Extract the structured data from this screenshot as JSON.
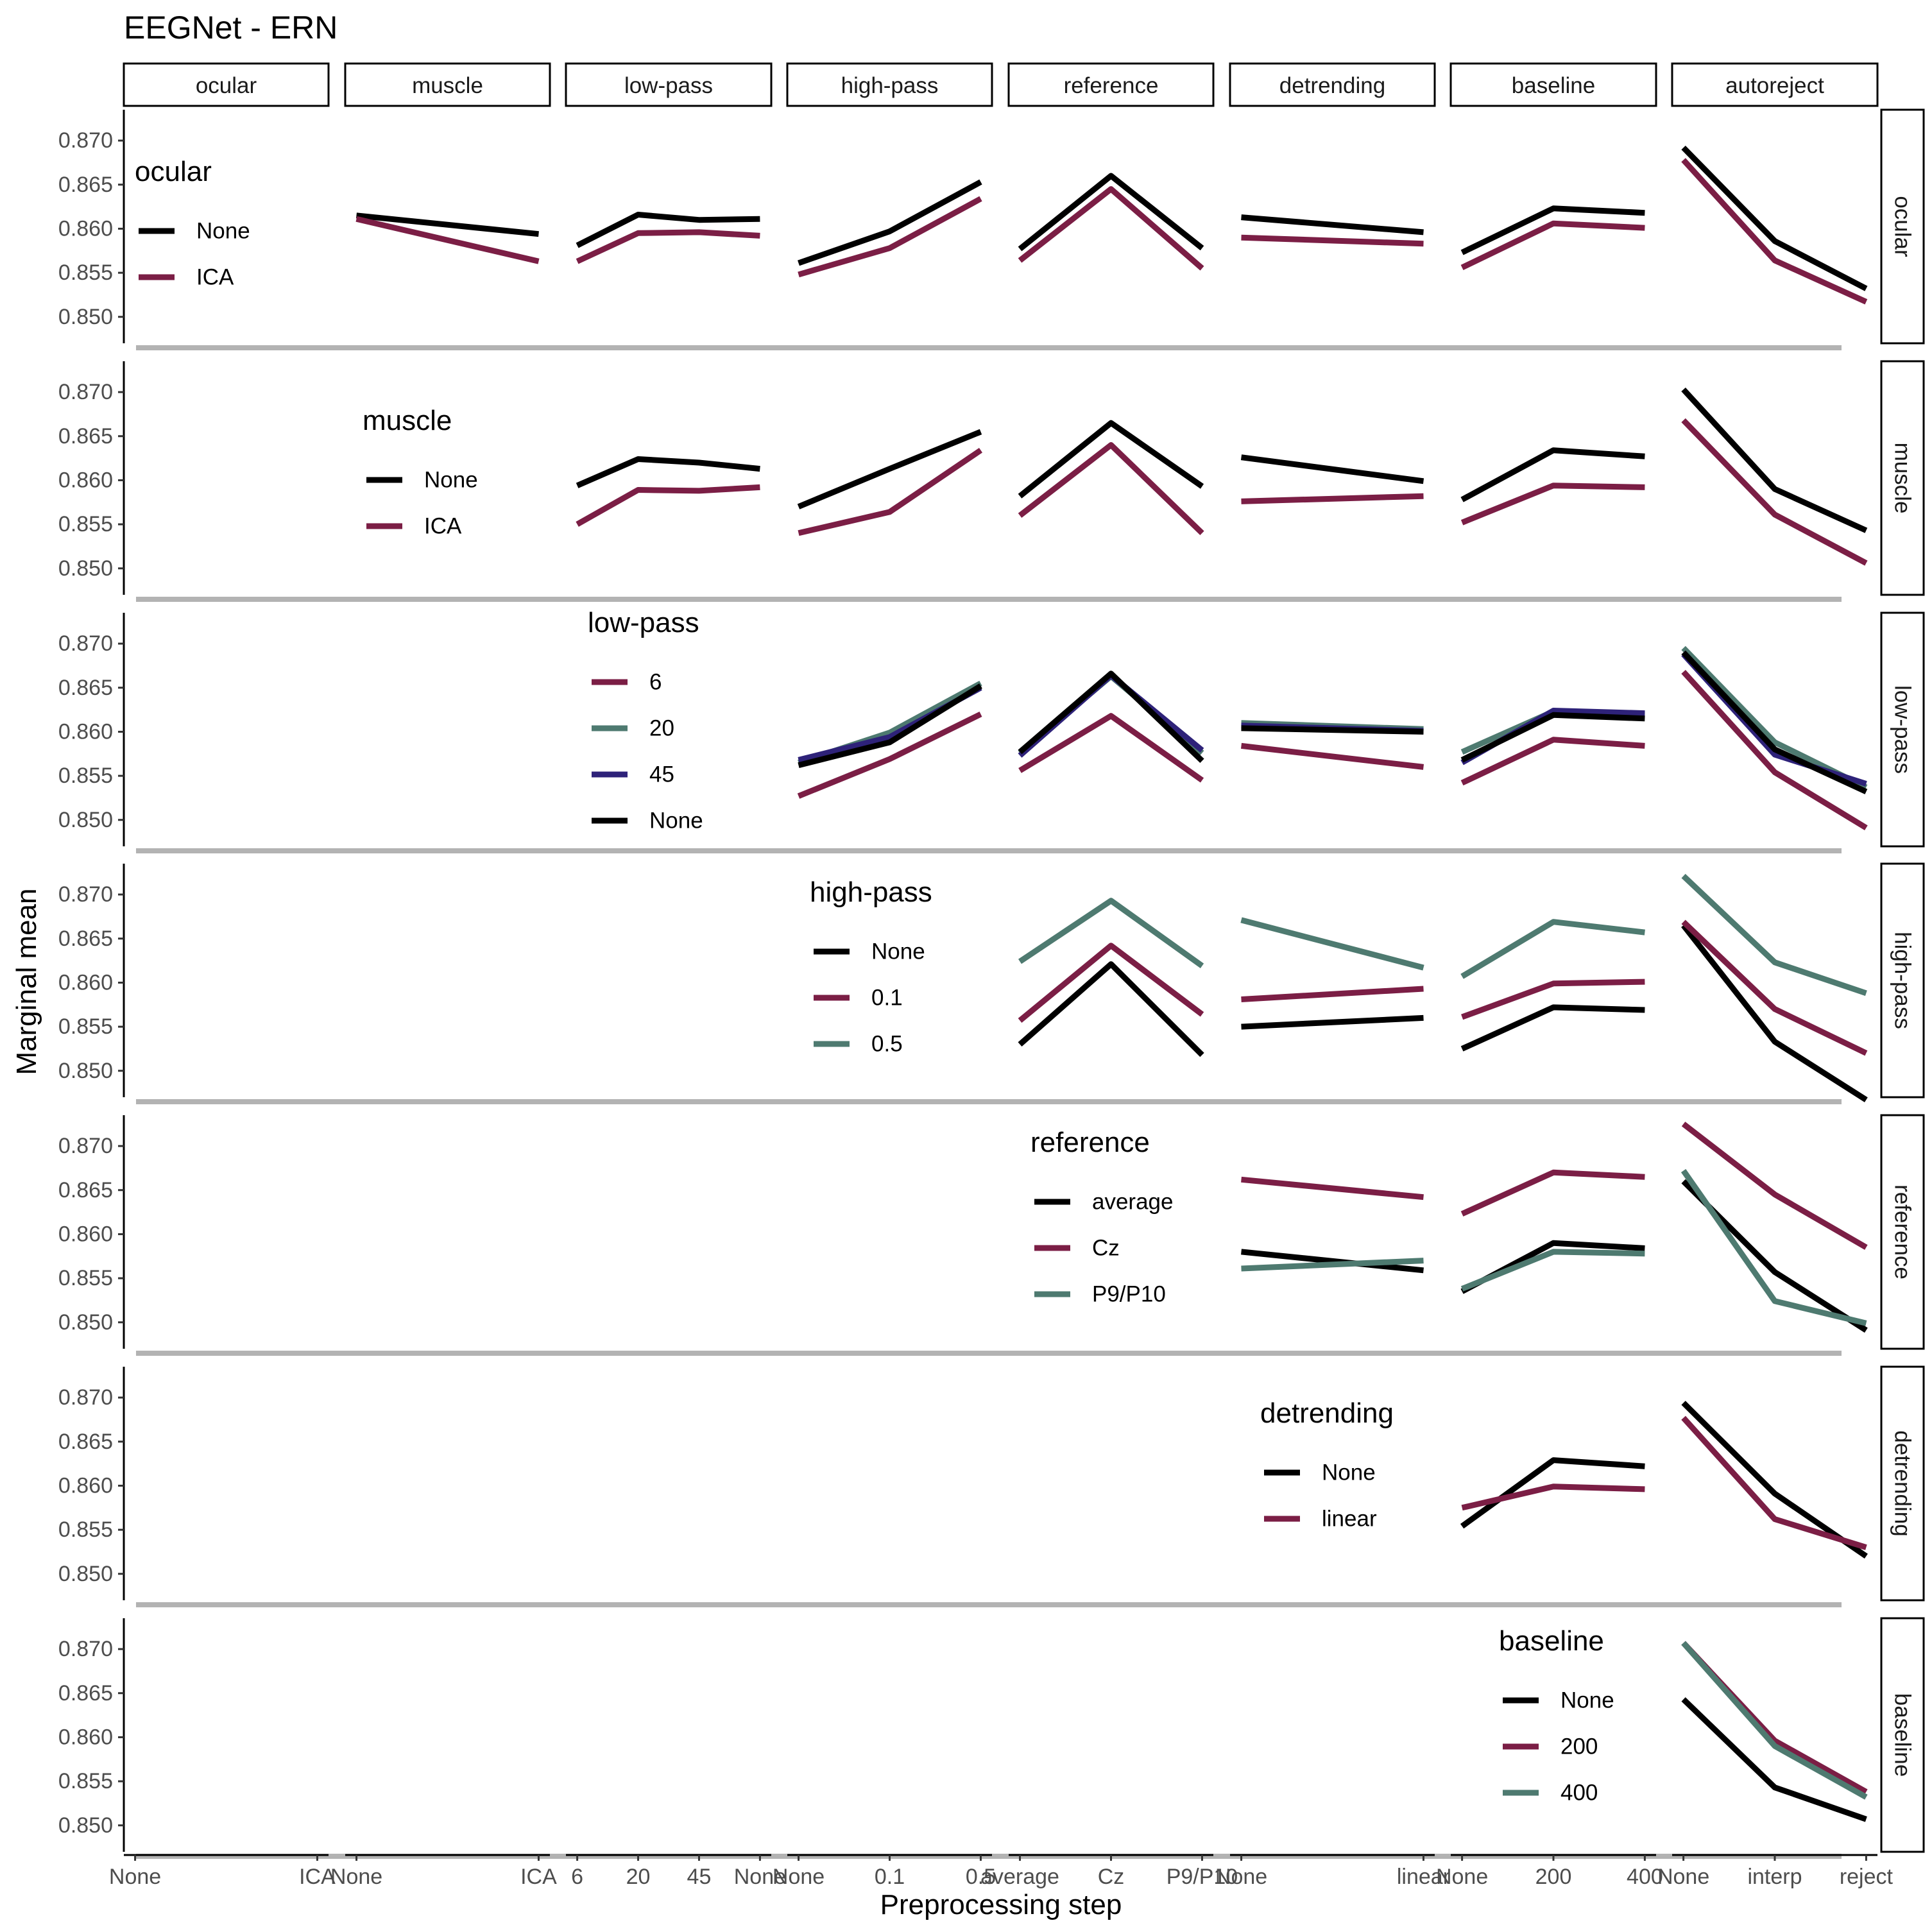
{
  "chart_data": {
    "type": "line",
    "title": "EEGNet - ERN",
    "xlabel": "Preprocessing step",
    "ylabel": "Marginal mean",
    "ylim": [
      0.847,
      0.8735
    ],
    "y_ticks": [
      "0.870",
      "0.865",
      "0.860",
      "0.855",
      "0.850"
    ],
    "y_tick_values": [
      0.87,
      0.865,
      0.86,
      0.855,
      0.85
    ],
    "grid": false,
    "columns": [
      {
        "name": "ocular",
        "levels": [
          "None",
          "ICA"
        ]
      },
      {
        "name": "muscle",
        "levels": [
          "None",
          "ICA"
        ]
      },
      {
        "name": "low-pass",
        "levels": [
          "6",
          "20",
          "45",
          "None"
        ]
      },
      {
        "name": "high-pass",
        "levels": [
          "None",
          "0.1",
          "0.5"
        ]
      },
      {
        "name": "reference",
        "levels": [
          "average",
          "Cz",
          "P9/P10"
        ]
      },
      {
        "name": "detrending",
        "levels": [
          "None",
          "linear"
        ]
      },
      {
        "name": "baseline",
        "levels": [
          "None",
          "200",
          "400"
        ]
      },
      {
        "name": "autoreject",
        "levels": [
          "None",
          "interp",
          "reject"
        ]
      }
    ],
    "rows": [
      {
        "name": "ocular",
        "legend": {
          "title": "ocular",
          "items": [
            {
              "label": "None",
              "color": "#000000"
            },
            {
              "label": "ICA",
              "color": "#7b1e45"
            }
          ]
        },
        "series": [
          {
            "name": "None",
            "color": "#000000",
            "values": {
              "muscle": [
                0.8615,
                0.8594
              ],
              "low-pass": [
                0.8581,
                0.8616,
                0.861,
                0.8611
              ],
              "high-pass": [
                0.8561,
                0.8597,
                0.8653
              ],
              "reference": [
                0.8577,
                0.866,
                0.8578
              ],
              "detrending": [
                0.8613,
                0.8596
              ],
              "baseline": [
                0.8573,
                0.8623,
                0.8618
              ],
              "autoreject": [
                0.8692,
                0.8586,
                0.8532
              ]
            }
          },
          {
            "name": "ICA",
            "color": "#7b1e45",
            "values": {
              "muscle": [
                0.8611,
                0.8563
              ],
              "low-pass": [
                0.8563,
                0.8595,
                0.8596,
                0.8592
              ],
              "high-pass": [
                0.8548,
                0.8578,
                0.8634
              ],
              "reference": [
                0.8564,
                0.8645,
                0.8555
              ],
              "detrending": [
                0.859,
                0.8583
              ],
              "baseline": [
                0.8556,
                0.8606,
                0.8601
              ],
              "autoreject": [
                0.8678,
                0.8564,
                0.8517
              ]
            }
          }
        ]
      },
      {
        "name": "muscle",
        "legend": {
          "title": "muscle",
          "items": [
            {
              "label": "None",
              "color": "#000000"
            },
            {
              "label": "ICA",
              "color": "#7b1e45"
            }
          ]
        },
        "series": [
          {
            "name": "None",
            "color": "#000000",
            "values": {
              "low-pass": [
                0.8594,
                0.8624,
                0.862,
                0.8613
              ],
              "high-pass": [
                0.857,
                0.8613,
                0.8655
              ],
              "reference": [
                0.8582,
                0.8665,
                0.8593
              ],
              "detrending": [
                0.8626,
                0.8599
              ],
              "baseline": [
                0.8578,
                0.8634,
                0.8627
              ],
              "autoreject": [
                0.8703,
                0.859,
                0.8543
              ]
            }
          },
          {
            "name": "ICA",
            "color": "#7b1e45",
            "values": {
              "low-pass": [
                0.855,
                0.8589,
                0.8588,
                0.8592
              ],
              "high-pass": [
                0.854,
                0.8564,
                0.8634
              ],
              "reference": [
                0.856,
                0.864,
                0.854
              ],
              "detrending": [
                0.8576,
                0.8582
              ],
              "baseline": [
                0.8552,
                0.8594,
                0.8592
              ],
              "autoreject": [
                0.8668,
                0.8561,
                0.8506
              ]
            }
          }
        ]
      },
      {
        "name": "low-pass",
        "legend": {
          "title": "low-pass",
          "items": [
            {
              "label": "6",
              "color": "#7b1e45"
            },
            {
              "label": "20",
              "color": "#4e7a70"
            },
            {
              "label": "45",
              "color": "#2e2279"
            },
            {
              "label": "None",
              "color": "#000000"
            }
          ]
        },
        "series": [
          {
            "name": "6",
            "color": "#7b1e45",
            "values": {
              "high-pass": [
                0.8527,
                0.8569,
                0.862
              ],
              "reference": [
                0.8556,
                0.8618,
                0.8545
              ],
              "detrending": [
                0.8584,
                0.856
              ],
              "baseline": [
                0.8542,
                0.8591,
                0.8584
              ],
              "autoreject": [
                0.8668,
                0.8554,
                0.8491
              ]
            }
          },
          {
            "name": "20",
            "color": "#4e7a70",
            "values": {
              "high-pass": [
                0.8565,
                0.8599,
                0.8655
              ],
              "reference": [
                0.8576,
                0.8663,
                0.8576
              ],
              "detrending": [
                0.861,
                0.8603
              ],
              "baseline": [
                0.8577,
                0.8623,
                0.8619
              ],
              "autoreject": [
                0.8695,
                0.8588,
                0.8537
              ]
            }
          },
          {
            "name": "45",
            "color": "#2e2279",
            "values": {
              "high-pass": [
                0.8568,
                0.8594,
                0.865
              ],
              "reference": [
                0.8573,
                0.8664,
                0.8579
              ],
              "detrending": [
                0.8607,
                0.8601
              ],
              "baseline": [
                0.8565,
                0.8624,
                0.8621
              ],
              "autoreject": [
                0.8688,
                0.8574,
                0.8541
              ]
            }
          },
          {
            "name": "None",
            "color": "#000000",
            "values": {
              "high-pass": [
                0.8562,
                0.8588,
                0.8652
              ],
              "reference": [
                0.8577,
                0.8666,
                0.8567
              ],
              "detrending": [
                0.8604,
                0.86
              ],
              "baseline": [
                0.8568,
                0.8619,
                0.8615
              ],
              "autoreject": [
                0.869,
                0.858,
                0.8532
              ]
            }
          }
        ]
      },
      {
        "name": "high-pass",
        "legend": {
          "title": "high-pass",
          "items": [
            {
              "label": "None",
              "color": "#000000"
            },
            {
              "label": "0.1",
              "color": "#7b1e45"
            },
            {
              "label": "0.5",
              "color": "#4e7a70"
            }
          ]
        },
        "series": [
          {
            "name": "None",
            "color": "#000000",
            "values": {
              "reference": [
                0.853,
                0.8621,
                0.8518
              ],
              "detrending": [
                0.855,
                0.856
              ],
              "baseline": [
                0.8525,
                0.8572,
                0.8569
              ],
              "autoreject": [
                0.8665,
                0.8533,
                0.8467
              ]
            }
          },
          {
            "name": "0.1",
            "color": "#7b1e45",
            "values": {
              "reference": [
                0.8557,
                0.8642,
                0.8564
              ],
              "detrending": [
                0.8581,
                0.8593
              ],
              "baseline": [
                0.8561,
                0.8599,
                0.8601
              ],
              "autoreject": [
                0.8669,
                0.857,
                0.852
              ]
            }
          },
          {
            "name": "0.5",
            "color": "#4e7a70",
            "values": {
              "reference": [
                0.8624,
                0.8693,
                0.8619
              ],
              "detrending": [
                0.8671,
                0.8617
              ],
              "baseline": [
                0.8607,
                0.8669,
                0.8657
              ],
              "autoreject": [
                0.8721,
                0.8623,
                0.8588
              ]
            }
          }
        ]
      },
      {
        "name": "reference",
        "legend": {
          "title": "reference",
          "items": [
            {
              "label": "average",
              "color": "#000000"
            },
            {
              "label": "Cz",
              "color": "#7b1e45"
            },
            {
              "label": "P9/P10",
              "color": "#4e7a70"
            }
          ]
        },
        "series": [
          {
            "name": "average",
            "color": "#000000",
            "values": {
              "detrending": [
                0.858,
                0.8559
              ],
              "baseline": [
                0.8535,
                0.859,
                0.8584
              ],
              "autoreject": [
                0.866,
                0.8557,
                0.8491
              ]
            }
          },
          {
            "name": "Cz",
            "color": "#7b1e45",
            "values": {
              "detrending": [
                0.8662,
                0.8642
              ],
              "baseline": [
                0.8623,
                0.867,
                0.8665
              ],
              "autoreject": [
                0.8725,
                0.8645,
                0.8585
              ]
            }
          },
          {
            "name": "P9/P10",
            "color": "#4e7a70",
            "values": {
              "detrending": [
                0.8561,
                0.857
              ],
              "baseline": [
                0.8538,
                0.858,
                0.8578
              ],
              "autoreject": [
                0.8672,
                0.8524,
                0.8499
              ]
            }
          }
        ]
      },
      {
        "name": "detrending",
        "legend": {
          "title": "detrending",
          "items": [
            {
              "label": "None",
              "color": "#000000"
            },
            {
              "label": "linear",
              "color": "#7b1e45"
            }
          ]
        },
        "series": [
          {
            "name": "None",
            "color": "#000000",
            "values": {
              "baseline": [
                0.8554,
                0.8629,
                0.8622
              ],
              "autoreject": [
                0.8694,
                0.8591,
                0.852
              ]
            }
          },
          {
            "name": "linear",
            "color": "#7b1e45",
            "values": {
              "baseline": [
                0.8575,
                0.8599,
                0.8596
              ],
              "autoreject": [
                0.8677,
                0.8562,
                0.853
              ]
            }
          }
        ]
      },
      {
        "name": "baseline",
        "legend": {
          "title": "baseline",
          "items": [
            {
              "label": "None",
              "color": "#000000"
            },
            {
              "label": "200",
              "color": "#7b1e45"
            },
            {
              "label": "400",
              "color": "#4e7a70"
            }
          ]
        },
        "series": [
          {
            "name": "None",
            "color": "#000000",
            "values": {
              "autoreject": [
                0.8643,
                0.8543,
                0.8507
              ]
            }
          },
          {
            "name": "200",
            "color": "#7b1e45",
            "values": {
              "autoreject": [
                0.8707,
                0.8596,
                0.8538
              ]
            }
          },
          {
            "name": "400",
            "color": "#4e7a70",
            "values": {
              "autoreject": [
                0.8707,
                0.859,
                0.8532
              ]
            }
          }
        ]
      }
    ]
  }
}
